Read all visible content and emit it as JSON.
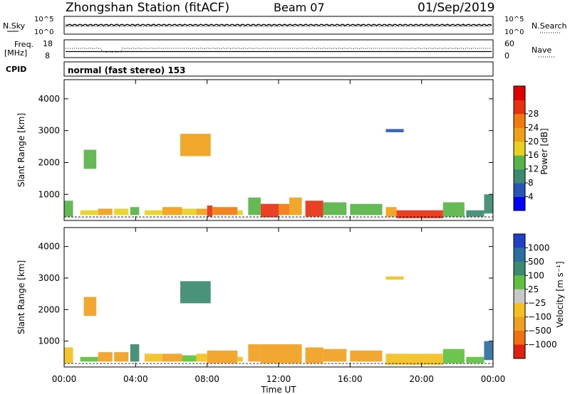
{
  "header": {
    "station": "Zhongshan Station (fitACF)",
    "beam": "Beam 07",
    "date": "01/Sep/2019"
  },
  "noise_panel": {
    "left_label": "N.Sky",
    "right_label": "N.Search",
    "ticks_left": [
      "10^5",
      "10^0"
    ],
    "ticks_right": [
      "10^5",
      "10^0"
    ]
  },
  "freq_panel": {
    "left_label_1": "Freq.",
    "left_label_2": "[MHz]",
    "ticks_left": [
      "18",
      "8"
    ],
    "ticks_right": [
      "60",
      "0"
    ],
    "right_label": "Nave"
  },
  "cpid_panel": {
    "label": "CPID",
    "text": "normal (fast stereo) 153"
  },
  "axes": {
    "ylabel": "Slant Range [km]",
    "yticks": [
      1000,
      2000,
      3000,
      4000
    ],
    "xticks": [
      "00:00",
      "04:00",
      "08:00",
      "12:00",
      "16:00",
      "20:00",
      "00:00"
    ],
    "xlabel": "Time UT",
    "ylim": [
      180,
      4600
    ],
    "xlim_hours": [
      0,
      24
    ]
  },
  "power_scale": {
    "title": "Power [dB]",
    "ticks": [
      "4",
      "8",
      "12",
      "16",
      "20",
      "24",
      "28"
    ],
    "colors": [
      "#0000ff",
      "#2a55b8",
      "#3d8a70",
      "#58b448",
      "#e8d020",
      "#f0a018",
      "#f07a10",
      "#e83010",
      "#e00000"
    ]
  },
  "velocity_scale": {
    "title": "Velocity [m s⁻¹]",
    "ticks": [
      "1000",
      "500",
      "100",
      "25",
      "−25",
      "−100",
      "−500",
      "−1000"
    ],
    "colors": [
      "#2040c8",
      "#2d6ea0",
      "#3a8a70",
      "#60c040",
      "#c8c8c8",
      "#f4c020",
      "#f0a020",
      "#f07010",
      "#e02010"
    ]
  },
  "chart_data": {
    "type": "heatmap",
    "title": "Zhongshan Station (fitACF) Beam 07 01/Sep/2019",
    "xlabel": "Time UT",
    "ylabel": "Slant Range [km]",
    "ylim": [
      180,
      4600
    ],
    "xlim": [
      0,
      24
    ],
    "series": [
      {
        "name": "Power [dB]",
        "cells": [
          {
            "t": [
              0.0,
              0.5
            ],
            "r": [
              300,
              800
            ],
            "v": 12
          },
          {
            "t": [
              0.9,
              1.9
            ],
            "r": [
              350,
              500
            ],
            "v": 16
          },
          {
            "t": [
              1.9,
              2.7
            ],
            "r": [
              350,
              550
            ],
            "v": 18
          },
          {
            "t": [
              2.8,
              3.6
            ],
            "r": [
              350,
              550
            ],
            "v": 16
          },
          {
            "t": [
              3.7,
              4.2
            ],
            "r": [
              350,
              600
            ],
            "v": 12
          },
          {
            "t": [
              4.5,
              5.5
            ],
            "r": [
              350,
              500
            ],
            "v": 16
          },
          {
            "t": [
              5.5,
              6.6
            ],
            "r": [
              350,
              600
            ],
            "v": 20
          },
          {
            "t": [
              6.6,
              7.4
            ],
            "r": [
              350,
              550
            ],
            "v": 16
          },
          {
            "t": [
              7.4,
              8.0
            ],
            "r": [
              350,
              550
            ],
            "v": 18
          },
          {
            "t": [
              8.0,
              8.3
            ],
            "r": [
              300,
              650
            ],
            "v": 26
          },
          {
            "t": [
              8.3,
              9.7
            ],
            "r": [
              350,
              600
            ],
            "v": 24
          },
          {
            "t": [
              9.7,
              10.0
            ],
            "r": [
              350,
              500
            ],
            "v": 16
          },
          {
            "t": [
              10.3,
              11.0
            ],
            "r": [
              350,
              900
            ],
            "v": 12
          },
          {
            "t": [
              11.0,
              12.0
            ],
            "r": [
              280,
              700
            ],
            "v": 28
          },
          {
            "t": [
              12.0,
              12.6
            ],
            "r": [
              350,
              700
            ],
            "v": 22
          },
          {
            "t": [
              12.6,
              13.3
            ],
            "r": [
              350,
              900
            ],
            "v": 18
          },
          {
            "t": [
              13.5,
              14.5
            ],
            "r": [
              300,
              800
            ],
            "v": 26
          },
          {
            "t": [
              14.5,
              15.8
            ],
            "r": [
              350,
              750
            ],
            "v": 14
          },
          {
            "t": [
              16.0,
              17.8
            ],
            "r": [
              350,
              700
            ],
            "v": 14
          },
          {
            "t": [
              18.0,
              18.6
            ],
            "r": [
              300,
              600
            ],
            "v": 20
          },
          {
            "t": [
              18.6,
              21.2
            ],
            "r": [
              250,
              500
            ],
            "v": 28
          },
          {
            "t": [
              21.2,
              22.4
            ],
            "r": [
              300,
              750
            ],
            "v": 12
          },
          {
            "t": [
              22.5,
              23.5
            ],
            "r": [
              300,
              500
            ],
            "v": 10
          },
          {
            "t": [
              23.5,
              24.0
            ],
            "r": [
              400,
              1000
            ],
            "v": 10
          },
          {
            "t": [
              6.5,
              8.2
            ],
            "r": [
              2200,
              2900
            ],
            "v": 18
          },
          {
            "t": [
              1.1,
              1.8
            ],
            "r": [
              1800,
              2400
            ],
            "v": 12
          },
          {
            "t": [
              18.0,
              19.0
            ],
            "r": [
              2950,
              3050
            ],
            "v": 4
          }
        ]
      },
      {
        "name": "Velocity [m s⁻¹]",
        "cells": [
          {
            "t": [
              0.0,
              0.5
            ],
            "r": [
              300,
              800
            ],
            "v": -100
          },
          {
            "t": [
              0.9,
              1.9
            ],
            "r": [
              350,
              500
            ],
            "v": 50
          },
          {
            "t": [
              1.9,
              2.7
            ],
            "r": [
              350,
              650
            ],
            "v": -200
          },
          {
            "t": [
              2.8,
              3.6
            ],
            "r": [
              350,
              650
            ],
            "v": -200
          },
          {
            "t": [
              3.7,
              4.2
            ],
            "r": [
              350,
              900
            ],
            "v": 300
          },
          {
            "t": [
              4.5,
              5.5
            ],
            "r": [
              350,
              600
            ],
            "v": -60
          },
          {
            "t": [
              5.5,
              6.6
            ],
            "r": [
              350,
              600
            ],
            "v": -200
          },
          {
            "t": [
              6.6,
              7.4
            ],
            "r": [
              350,
              550
            ],
            "v": 30
          },
          {
            "t": [
              7.4,
              8.0
            ],
            "r": [
              350,
              600
            ],
            "v": -60
          },
          {
            "t": [
              8.0,
              9.7
            ],
            "r": [
              300,
              700
            ],
            "v": -300
          },
          {
            "t": [
              9.7,
              10.0
            ],
            "r": [
              350,
              500
            ],
            "v": -60
          },
          {
            "t": [
              10.3,
              11.0
            ],
            "r": [
              350,
              900
            ],
            "v": -200
          },
          {
            "t": [
              11.0,
              13.3
            ],
            "r": [
              300,
              900
            ],
            "v": -300
          },
          {
            "t": [
              13.5,
              14.5
            ],
            "r": [
              300,
              800
            ],
            "v": -300
          },
          {
            "t": [
              14.5,
              15.8
            ],
            "r": [
              350,
              750
            ],
            "v": -200
          },
          {
            "t": [
              16.0,
              17.8
            ],
            "r": [
              350,
              700
            ],
            "v": -150
          },
          {
            "t": [
              18.0,
              21.2
            ],
            "r": [
              250,
              600
            ],
            "v": -80
          },
          {
            "t": [
              21.2,
              22.4
            ],
            "r": [
              300,
              750
            ],
            "v": 50
          },
          {
            "t": [
              22.5,
              23.5
            ],
            "r": [
              300,
              500
            ],
            "v": 30
          },
          {
            "t": [
              23.5,
              24.0
            ],
            "r": [
              400,
              1000
            ],
            "v": 600
          },
          {
            "t": [
              6.5,
              8.2
            ],
            "r": [
              2200,
              2900
            ],
            "v": 200
          },
          {
            "t": [
              1.1,
              1.8
            ],
            "r": [
              1800,
              2400
            ],
            "v": -150
          },
          {
            "t": [
              18.0,
              19.0
            ],
            "r": [
              2950,
              3050
            ],
            "v": -100
          }
        ]
      }
    ]
  }
}
